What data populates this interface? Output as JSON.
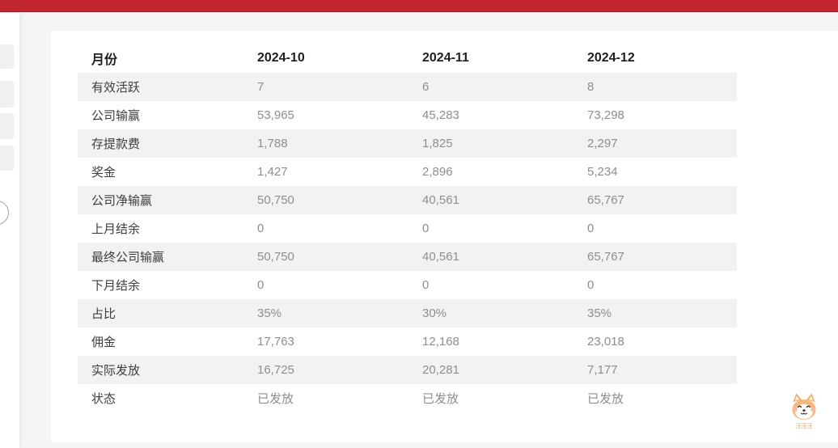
{
  "topbar": {
    "color": "#c22730"
  },
  "table": {
    "columns": [
      "月份",
      "2024-10",
      "2024-11",
      "2024-12"
    ],
    "rows": [
      {
        "label": "有效活跃",
        "values": [
          "7",
          "6",
          "8"
        ]
      },
      {
        "label": "公司输赢",
        "values": [
          "53,965",
          "45,283",
          "73,298"
        ]
      },
      {
        "label": "存提款费",
        "values": [
          "1,788",
          "1,825",
          "2,297"
        ]
      },
      {
        "label": "奖金",
        "values": [
          "1,427",
          "2,896",
          "5,234"
        ]
      },
      {
        "label": "公司净输赢",
        "values": [
          "50,750",
          "40,561",
          "65,767"
        ]
      },
      {
        "label": "上月结余",
        "values": [
          "0",
          "0",
          "0"
        ]
      },
      {
        "label": "最终公司输赢",
        "values": [
          "50,750",
          "40,561",
          "65,767"
        ]
      },
      {
        "label": "下月结余",
        "values": [
          "0",
          "0",
          "0"
        ]
      },
      {
        "label": "占比",
        "values": [
          "35%",
          "30%",
          "35%"
        ]
      },
      {
        "label": "佣金",
        "values": [
          "17,763",
          "12,168",
          "23,018"
        ]
      },
      {
        "label": "实际发放",
        "values": [
          "16,725",
          "20,281",
          "7,177"
        ]
      },
      {
        "label": "状态",
        "values": [
          "已发放",
          "已发放",
          "已发放"
        ]
      }
    ]
  },
  "mascot": {
    "label": "汪汪汪"
  }
}
